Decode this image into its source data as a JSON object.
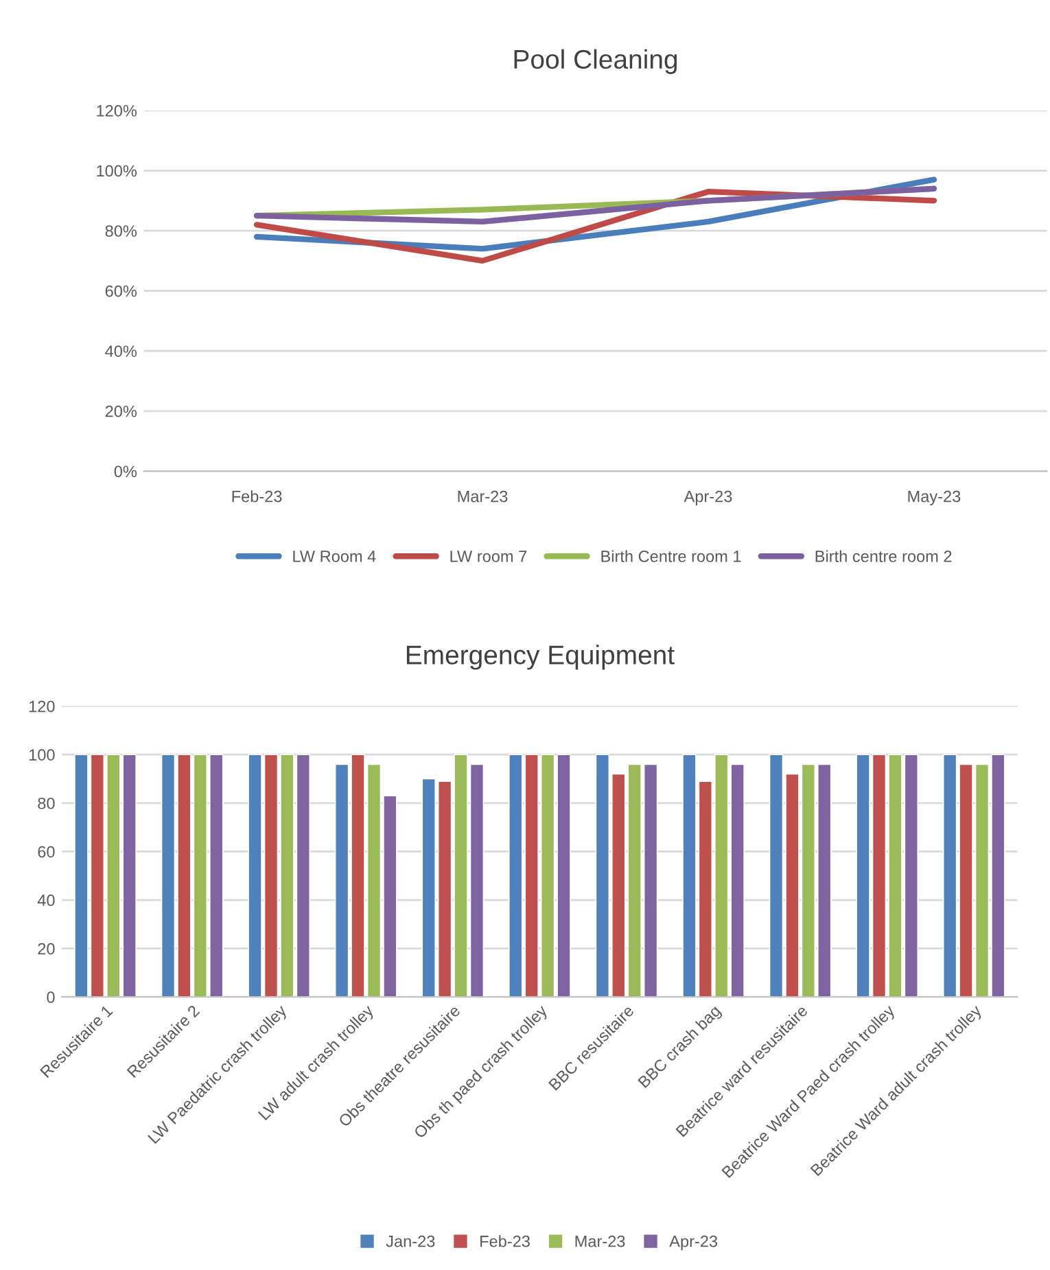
{
  "chart_data": [
    {
      "type": "line",
      "title": "Pool Cleaning",
      "categories": [
        "Feb-23",
        "Mar-23",
        "Apr-23",
        "May-23"
      ],
      "series": [
        {
          "name": "LW Room 4",
          "color": "#4a7ebb",
          "values": [
            78,
            74,
            83,
            97
          ]
        },
        {
          "name": "LW room 7",
          "color": "#be4b48",
          "values": [
            82,
            70,
            93,
            90
          ]
        },
        {
          "name": "Birth Centre room 1",
          "color": "#98b954",
          "values": [
            85,
            87,
            90,
            94
          ]
        },
        {
          "name": "Birth centre room 2",
          "color": "#7d60a0",
          "values": [
            85,
            83,
            90,
            94
          ]
        }
      ],
      "ylim": [
        0,
        120
      ],
      "yticks": [
        {
          "value": 0,
          "label": "0%"
        },
        {
          "value": 20,
          "label": "20%"
        },
        {
          "value": 40,
          "label": "40%"
        },
        {
          "value": 60,
          "label": "60%"
        },
        {
          "value": 80,
          "label": "80%"
        },
        {
          "value": 100,
          "label": "100%"
        },
        {
          "value": 120,
          "label": "120%"
        }
      ],
      "grid": "y",
      "legend": "bottom",
      "marker": "none",
      "line_style": "solid"
    },
    {
      "type": "bar",
      "title": "Emergency Equipment",
      "categories": [
        "Resusitaire 1",
        "Resusitaire 2",
        "LW Paedatric crash trolley",
        "LW adult crash trolley",
        "Obs theatre resusitaire",
        "Obs th paed crash trolley",
        "BBC resusitaire",
        "BBC crash bag",
        "Beatrice ward resusitaire",
        "Beatrice Ward Paed crash trolley",
        "Beatrice Ward adult crash trolley"
      ],
      "series": [
        {
          "name": "Jan-23",
          "color": "#4f81bd",
          "values": [
            100,
            100,
            100,
            96,
            90,
            100,
            100,
            100,
            100,
            100,
            100
          ]
        },
        {
          "name": "Feb-23",
          "color": "#c0504d",
          "values": [
            100,
            100,
            100,
            100,
            89,
            100,
            92,
            89,
            92,
            100,
            96
          ]
        },
        {
          "name": "Mar-23",
          "color": "#9bbb59",
          "values": [
            100,
            100,
            100,
            96,
            100,
            100,
            96,
            100,
            96,
            100,
            96
          ]
        },
        {
          "name": "Apr-23",
          "color": "#8064a2",
          "values": [
            100,
            100,
            100,
            83,
            96,
            100,
            96,
            96,
            96,
            100,
            100
          ]
        }
      ],
      "ylim": [
        0,
        120
      ],
      "yticks": [
        0,
        20,
        40,
        60,
        80,
        100,
        120
      ],
      "grid": "y",
      "legend": "bottom"
    }
  ]
}
